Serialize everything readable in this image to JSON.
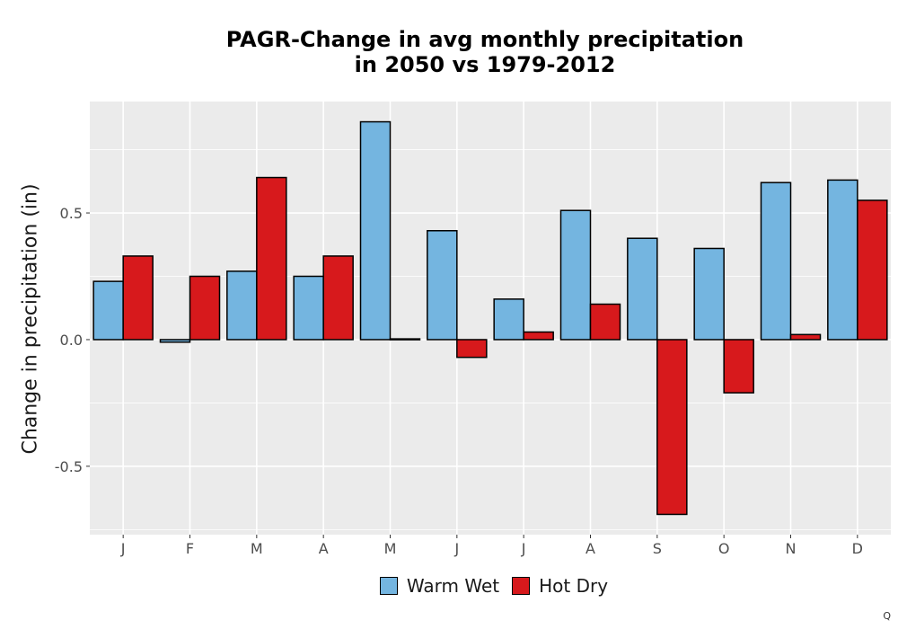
{
  "chart_data": {
    "type": "bar",
    "title_line1": "PAGR-Change in avg monthly precipitation",
    "title_line2": "in 2050 vs 1979-2012",
    "xlabel": "",
    "ylabel": "Change in precipitation (in)",
    "categories": [
      "J",
      "F",
      "M",
      "A",
      "M",
      "J",
      "J",
      "A",
      "S",
      "O",
      "N",
      "D"
    ],
    "series": [
      {
        "name": "Warm Wet",
        "color": "#74b5e0",
        "values": [
          0.23,
          -0.01,
          0.27,
          0.25,
          0.86,
          0.43,
          0.16,
          0.51,
          0.4,
          0.36,
          0.62,
          0.63
        ]
      },
      {
        "name": "Hot Dry",
        "color": "#d7191c",
        "values": [
          0.33,
          0.25,
          0.64,
          0.33,
          0.003,
          -0.07,
          0.03,
          0.14,
          -0.69,
          -0.21,
          0.02,
          0.55
        ]
      }
    ],
    "yticks": [
      "0.5",
      "0.0",
      "-0.5"
    ],
    "ylim": [
      -0.77,
      0.94
    ],
    "grid": true,
    "legend_position": "bottom",
    "background": "#ebebeb"
  },
  "corner_mark": "Q"
}
